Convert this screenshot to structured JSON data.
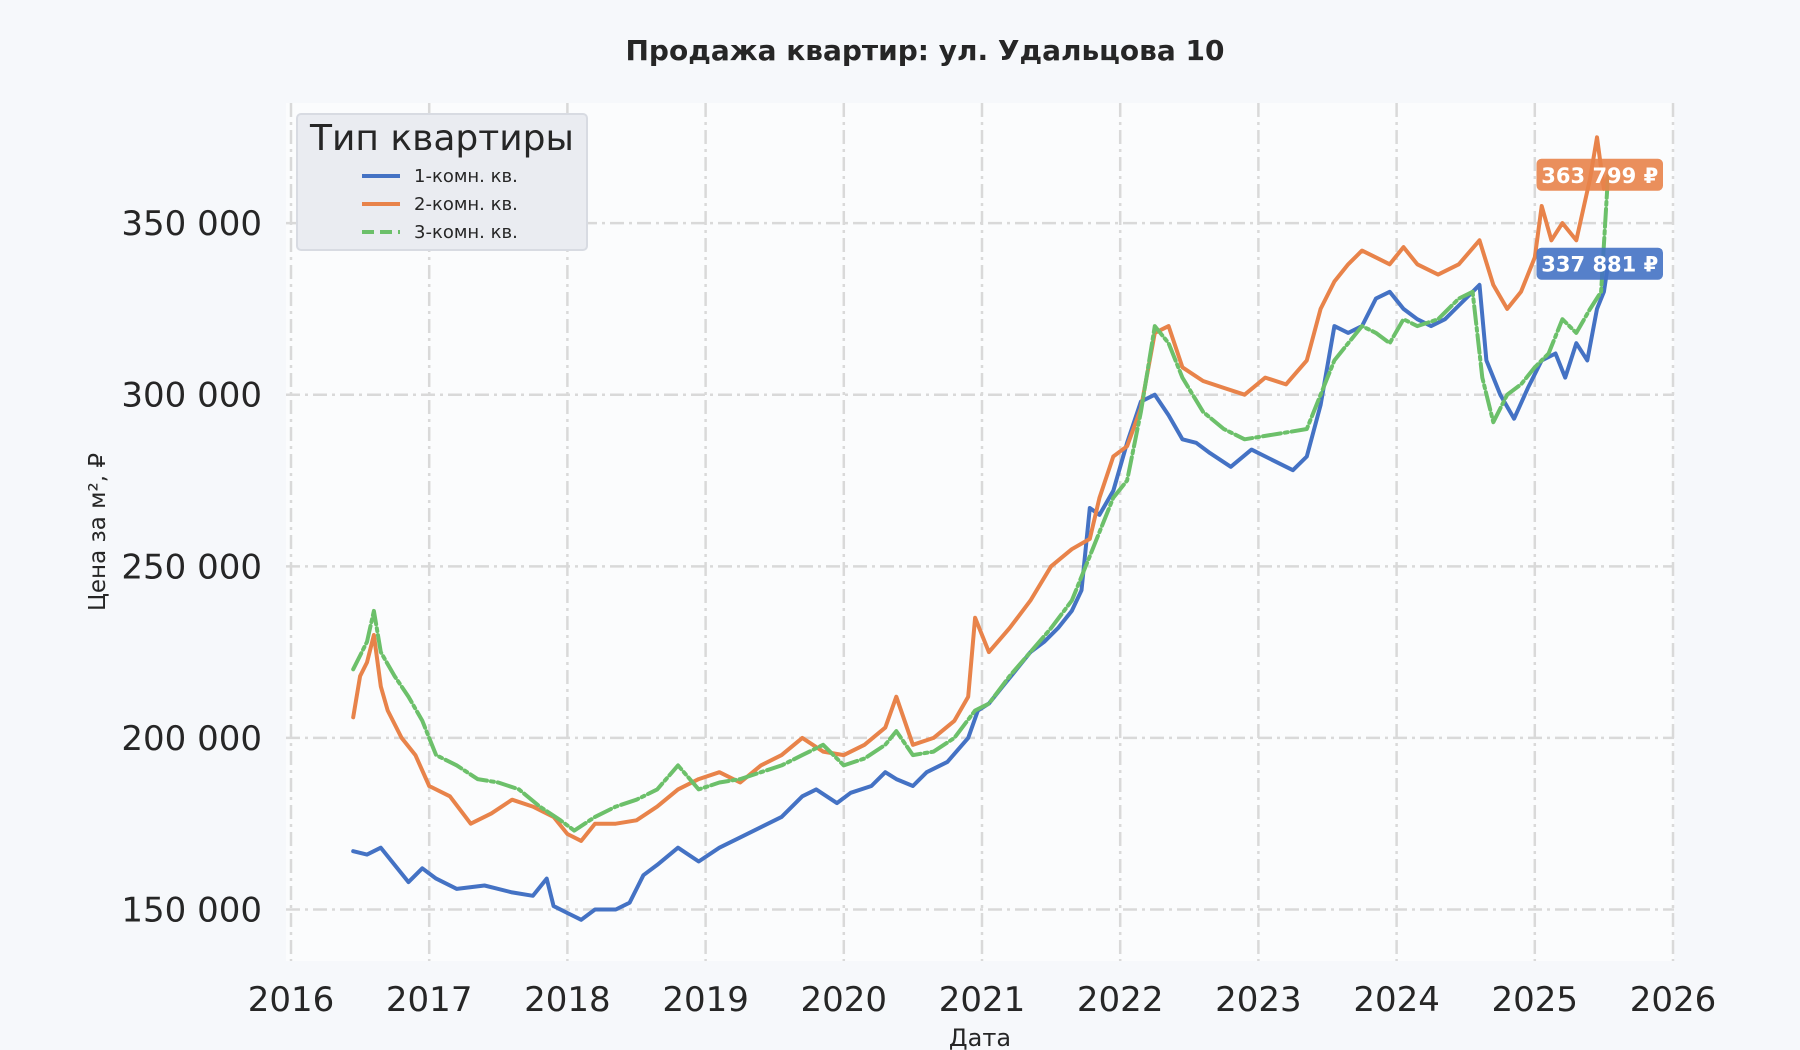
{
  "chart_data": {
    "type": "line",
    "title": "Продажа квартир: ул. Удальцова 10",
    "xlabel": "Дата",
    "ylabel": "Цена за м², ₽",
    "xlim": [
      2016,
      2026
    ],
    "ylim": [
      135000,
      385000
    ],
    "x_ticks": [
      2016,
      2017,
      2018,
      2019,
      2020,
      2021,
      2022,
      2023,
      2024,
      2025,
      2026
    ],
    "x_tick_labels": [
      "2016",
      "2017",
      "2018",
      "2019",
      "2020",
      "2021",
      "2022",
      "2023",
      "2024",
      "2025",
      "2026"
    ],
    "y_ticks": [
      150000,
      200000,
      250000,
      300000,
      350000
    ],
    "y_tick_labels": [
      "150 000",
      "200 000",
      "250 000",
      "300 000",
      "350 000"
    ],
    "grid": true,
    "legend": {
      "title": "Тип квартиры",
      "position": "top-left"
    },
    "series": [
      {
        "name": "1-комн. кв.",
        "color": "#4472c4",
        "line_style": "solid",
        "end_label": "337 881 ₽",
        "x": [
          2016.45,
          2016.55,
          2016.65,
          2016.75,
          2016.85,
          2016.95,
          2017.05,
          2017.2,
          2017.4,
          2017.6,
          2017.75,
          2017.85,
          2017.9,
          2018.0,
          2018.1,
          2018.2,
          2018.35,
          2018.45,
          2018.55,
          2018.65,
          2018.8,
          2018.95,
          2019.1,
          2019.25,
          2019.4,
          2019.55,
          2019.7,
          2019.8,
          2019.95,
          2020.05,
          2020.2,
          2020.3,
          2020.38,
          2020.5,
          2020.6,
          2020.75,
          2020.9,
          2020.97,
          2021.05,
          2021.15,
          2021.25,
          2021.35,
          2021.45,
          2021.55,
          2021.65,
          2021.72,
          2021.78,
          2021.85,
          2021.95,
          2022.05,
          2022.15,
          2022.25,
          2022.35,
          2022.45,
          2022.55,
          2022.65,
          2022.8,
          2022.95,
          2023.1,
          2023.25,
          2023.35,
          2023.45,
          2023.55,
          2023.65,
          2023.75,
          2023.85,
          2023.95,
          2024.05,
          2024.15,
          2024.25,
          2024.35,
          2024.45,
          2024.55,
          2024.6,
          2024.65,
          2024.75,
          2024.85,
          2024.95,
          2025.05,
          2025.15,
          2025.22,
          2025.3,
          2025.38,
          2025.45,
          2025.5,
          2025.53
        ],
        "y": [
          167000,
          166000,
          168000,
          163000,
          158000,
          162000,
          159000,
          156000,
          157000,
          155000,
          154000,
          159000,
          151000,
          149000,
          147000,
          150000,
          150000,
          152000,
          160000,
          163000,
          168000,
          164000,
          168000,
          171000,
          174000,
          177000,
          183000,
          185000,
          181000,
          184000,
          186000,
          190000,
          188000,
          186000,
          190000,
          193000,
          200000,
          208000,
          210000,
          215000,
          220000,
          225000,
          228000,
          232000,
          237000,
          243000,
          267000,
          265000,
          272000,
          286000,
          298000,
          300000,
          294000,
          287000,
          286000,
          283000,
          279000,
          284000,
          281000,
          278000,
          282000,
          297000,
          320000,
          318000,
          320000,
          328000,
          330000,
          325000,
          322000,
          320000,
          322000,
          326000,
          330000,
          332000,
          310000,
          300000,
          293000,
          302000,
          310000,
          312000,
          305000,
          315000,
          310000,
          325000,
          330000,
          337881
        ]
      },
      {
        "name": "2-комн. кв.",
        "color": "#e8834a",
        "line_style": "solid",
        "end_label": "363 799 ₽",
        "x": [
          2016.45,
          2016.5,
          2016.55,
          2016.6,
          2016.65,
          2016.7,
          2016.8,
          2016.9,
          2017.0,
          2017.15,
          2017.3,
          2017.45,
          2017.6,
          2017.75,
          2017.9,
          2018.0,
          2018.1,
          2018.2,
          2018.35,
          2018.5,
          2018.65,
          2018.8,
          2018.95,
          2019.1,
          2019.25,
          2019.4,
          2019.55,
          2019.7,
          2019.85,
          2020.0,
          2020.15,
          2020.3,
          2020.38,
          2020.5,
          2020.65,
          2020.8,
          2020.9,
          2020.95,
          2021.05,
          2021.2,
          2021.35,
          2021.5,
          2021.65,
          2021.78,
          2021.85,
          2021.95,
          2022.05,
          2022.15,
          2022.25,
          2022.35,
          2022.45,
          2022.6,
          2022.75,
          2022.9,
          2023.05,
          2023.2,
          2023.35,
          2023.45,
          2023.55,
          2023.65,
          2023.75,
          2023.85,
          2023.95,
          2024.05,
          2024.15,
          2024.3,
          2024.45,
          2024.6,
          2024.7,
          2024.8,
          2024.9,
          2025.0,
          2025.05,
          2025.12,
          2025.2,
          2025.3,
          2025.4,
          2025.45,
          2025.5,
          2025.53
        ],
        "y": [
          206000,
          218000,
          222000,
          230000,
          215000,
          208000,
          200000,
          195000,
          186000,
          183000,
          175000,
          178000,
          182000,
          180000,
          177000,
          172000,
          170000,
          175000,
          175000,
          176000,
          180000,
          185000,
          188000,
          190000,
          187000,
          192000,
          195000,
          200000,
          196000,
          195000,
          198000,
          203000,
          212000,
          198000,
          200000,
          205000,
          212000,
          235000,
          225000,
          232000,
          240000,
          250000,
          255000,
          258000,
          270000,
          282000,
          285000,
          296000,
          318000,
          320000,
          308000,
          304000,
          302000,
          300000,
          305000,
          303000,
          310000,
          325000,
          333000,
          338000,
          342000,
          340000,
          338000,
          343000,
          338000,
          335000,
          338000,
          345000,
          332000,
          325000,
          330000,
          340000,
          355000,
          345000,
          350000,
          345000,
          363000,
          375000,
          360000,
          363799
        ]
      },
      {
        "name": "3-комн. кв.",
        "color": "#6cc06a",
        "line_style": "dashed",
        "end_label": "363 799 ₽",
        "x": [
          2016.45,
          2016.55,
          2016.6,
          2016.65,
          2016.75,
          2016.85,
          2016.95,
          2017.05,
          2017.2,
          2017.35,
          2017.5,
          2017.65,
          2017.8,
          2017.95,
          2018.05,
          2018.2,
          2018.35,
          2018.5,
          2018.65,
          2018.8,
          2018.95,
          2019.1,
          2019.25,
          2019.4,
          2019.55,
          2019.7,
          2019.85,
          2020.0,
          2020.15,
          2020.3,
          2020.38,
          2020.5,
          2020.65,
          2020.8,
          2020.95,
          2021.05,
          2021.2,
          2021.35,
          2021.5,
          2021.65,
          2021.75,
          2021.85,
          2021.95,
          2022.05,
          2022.15,
          2022.25,
          2022.35,
          2022.45,
          2022.6,
          2022.75,
          2022.9,
          2023.05,
          2023.2,
          2023.35,
          2023.45,
          2023.55,
          2023.65,
          2023.75,
          2023.85,
          2023.95,
          2024.05,
          2024.15,
          2024.3,
          2024.45,
          2024.55,
          2024.62,
          2024.7,
          2024.8,
          2024.9,
          2025.0,
          2025.1,
          2025.2,
          2025.3,
          2025.4,
          2025.48,
          2025.53
        ],
        "y": [
          220000,
          228000,
          237000,
          225000,
          218000,
          212000,
          205000,
          195000,
          192000,
          188000,
          187000,
          185000,
          180000,
          176000,
          173000,
          177000,
          180000,
          182000,
          185000,
          192000,
          185000,
          187000,
          188000,
          190000,
          192000,
          195000,
          198000,
          192000,
          194000,
          198000,
          202000,
          195000,
          196000,
          200000,
          208000,
          210000,
          218000,
          225000,
          232000,
          240000,
          250000,
          260000,
          270000,
          275000,
          295000,
          320000,
          315000,
          305000,
          295000,
          290000,
          287000,
          288000,
          289000,
          290000,
          300000,
          310000,
          315000,
          320000,
          318000,
          315000,
          322000,
          320000,
          322000,
          328000,
          330000,
          305000,
          292000,
          300000,
          303000,
          308000,
          312000,
          322000,
          318000,
          325000,
          330000,
          363799
        ]
      }
    ]
  }
}
